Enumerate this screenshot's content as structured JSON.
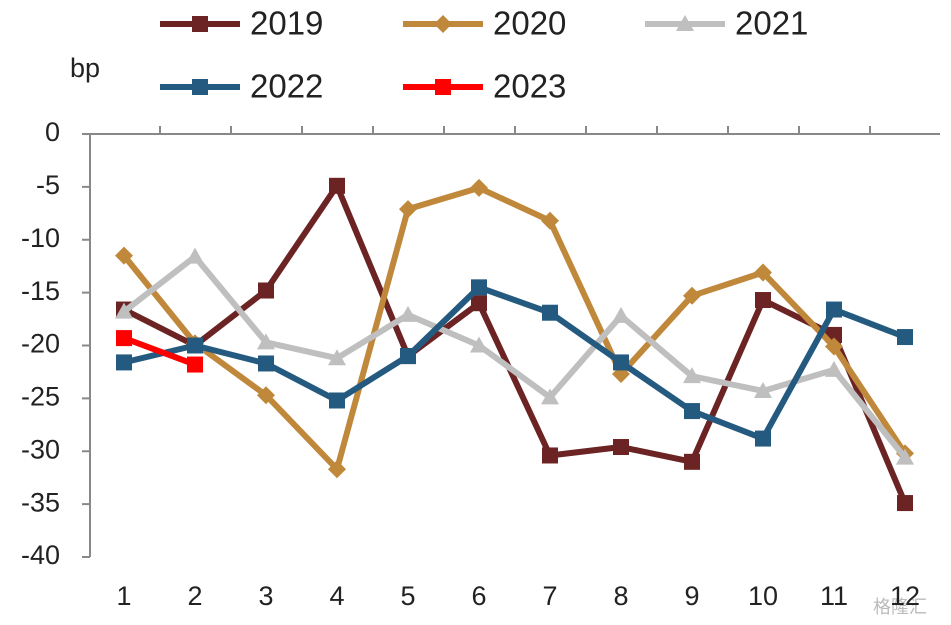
{
  "chart_data": {
    "type": "line",
    "y_label": "bp",
    "watermark": "格隆汇",
    "categories": [
      "1",
      "2",
      "3",
      "4",
      "5",
      "6",
      "7",
      "8",
      "9",
      "10",
      "11",
      "12"
    ],
    "series": [
      {
        "name": "2019",
        "color": "#6b2323",
        "marker": "square",
        "values": [
          -16.6,
          -20.0,
          -14.8,
          -4.9,
          -21.0,
          -16.0,
          -30.4,
          -29.6,
          -31.0,
          -15.7,
          -19.0,
          -34.9
        ]
      },
      {
        "name": "2020",
        "color": "#c0883a",
        "marker": "diamond",
        "values": [
          -11.5,
          -19.8,
          -24.7,
          -31.7,
          -7.1,
          -5.1,
          -8.2,
          -22.7,
          -15.3,
          -13.1,
          -20.1,
          -30.2
        ]
      },
      {
        "name": "2021",
        "color": "#bfbfbf",
        "marker": "triangle",
        "values": [
          -16.8,
          -11.6,
          -19.7,
          -21.2,
          -17.1,
          -20.0,
          -24.9,
          -17.2,
          -22.9,
          -24.3,
          -22.3,
          -30.6
        ]
      },
      {
        "name": "2022",
        "color": "#255a80",
        "marker": "square",
        "values": [
          -21.6,
          -20.0,
          -21.7,
          -25.2,
          -21.0,
          -14.5,
          -16.9,
          -21.6,
          -26.2,
          -28.8,
          -16.6,
          -19.2
        ]
      },
      {
        "name": "2023",
        "color": "#ff0000",
        "marker": "square",
        "values": [
          -19.3,
          -21.8,
          null,
          null,
          null,
          null,
          null,
          null,
          null,
          null,
          null,
          null
        ]
      }
    ],
    "ylim": [
      -40,
      0
    ],
    "yticks": [
      0,
      -5,
      -10,
      -15,
      -20,
      -25,
      -30,
      -35,
      -40
    ]
  }
}
